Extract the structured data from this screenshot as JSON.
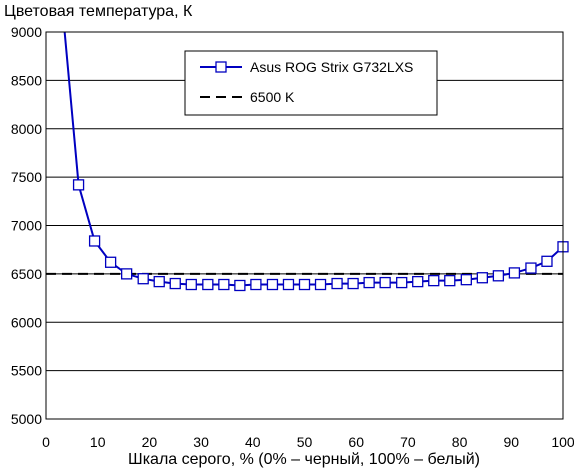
{
  "chart_data": {
    "type": "line",
    "title": "Цветовая температура, К",
    "xlabel": "Шкала серого, % (0% – черный, 100% – белый)",
    "ylabel": "",
    "xlim": [
      0,
      100
    ],
    "ylim": [
      5000,
      9000
    ],
    "x_ticks": [
      "0",
      "10",
      "20",
      "30",
      "40",
      "50",
      "60",
      "70",
      "80",
      "90",
      "100"
    ],
    "y_ticks": [
      "5000",
      "5500",
      "6000",
      "6500",
      "7000",
      "7500",
      "8000",
      "8500",
      "9000"
    ],
    "grid": "horizontal",
    "legend_position": "top-center",
    "colors": {
      "series": "#0000c0",
      "reference": "#000000",
      "grid": "#000000"
    },
    "series": [
      {
        "name": "Asus ROG Strix G732LXS",
        "style": "solid-square-markers",
        "x": [
          3.1,
          6.3,
          9.4,
          12.5,
          15.6,
          18.8,
          21.9,
          25.0,
          28.1,
          31.3,
          34.4,
          37.5,
          40.6,
          43.8,
          46.9,
          50.0,
          53.1,
          56.3,
          59.4,
          62.5,
          65.6,
          68.8,
          71.9,
          75.0,
          78.1,
          81.3,
          84.4,
          87.5,
          90.6,
          93.8,
          96.9,
          100.0
        ],
        "y": [
          9300,
          7420,
          6840,
          6620,
          6500,
          6450,
          6420,
          6400,
          6390,
          6390,
          6390,
          6380,
          6390,
          6390,
          6390,
          6390,
          6390,
          6400,
          6400,
          6410,
          6410,
          6410,
          6420,
          6430,
          6430,
          6440,
          6460,
          6480,
          6510,
          6560,
          6630,
          6780
        ],
        "markers_from_index": 1
      },
      {
        "name": "6500 K",
        "style": "dashed",
        "x": [
          0,
          100
        ],
        "y": [
          6500,
          6500
        ]
      }
    ]
  }
}
